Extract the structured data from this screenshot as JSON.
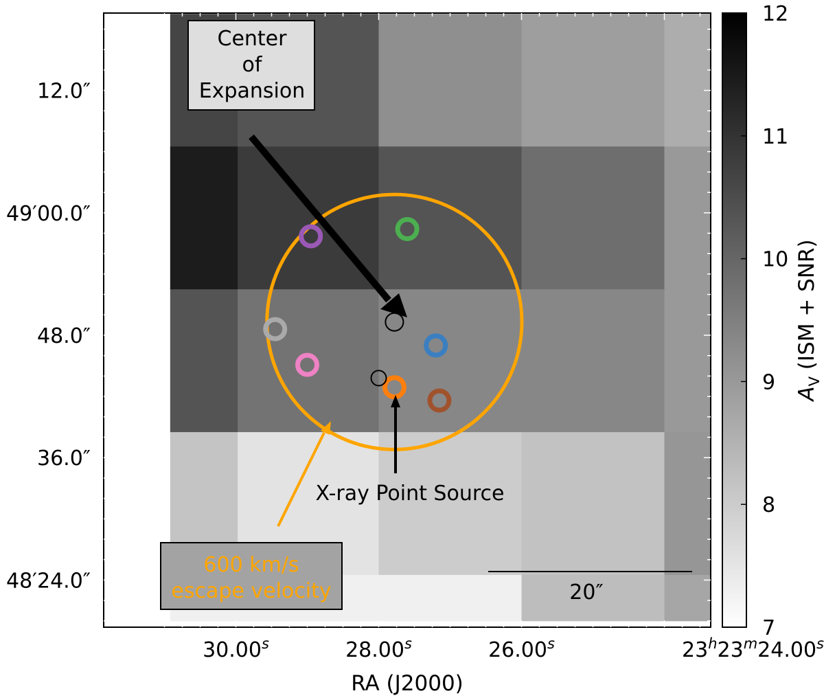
{
  "chart_data": {
    "type": "heatmap",
    "description_units": "Extinction map A_V with marked sources",
    "xlabel": "RA (J2000)",
    "x_tick_labels": [
      {
        "main": "30.00",
        "sup": "s"
      },
      {
        "main": "28.00",
        "sup": "s"
      },
      {
        "main": "26.00",
        "sup": "s"
      },
      {
        "main": "23",
        "sup": "h",
        "main2": "23",
        "sup2": "m",
        "main3": "24.00",
        "sup3": "s"
      }
    ],
    "x_tick_values_s": [
      30.0,
      28.0,
      26.0,
      24.0
    ],
    "y_tick_labels": [
      "12.0″",
      "49′00.0″",
      "48.0″",
      "36.0″",
      "48′24.0″"
    ],
    "y_tick_values_arcsec": [
      12,
      0,
      -12,
      -24,
      -36
    ],
    "colorbar": {
      "label_main": "A",
      "label_sub": "V",
      "label_rest": " (ISM + SNR)",
      "range": [
        7,
        12
      ],
      "ticks": [
        "7",
        "8",
        "9",
        "10",
        "11",
        "12"
      ],
      "tick_values": [
        7,
        8,
        9,
        10,
        11,
        12
      ],
      "colormap": "gray_r"
    },
    "grid": {
      "col_ra_s": [
        30.92,
        29.975,
        28.0,
        26.0,
        24.0,
        23.3
      ],
      "row_dec_arcsec": [
        19.5,
        6.5,
        -7.5,
        -21.5,
        -35.5,
        -40.0
      ],
      "values": [
        [
          10.65,
          10.35,
          9.2,
          8.9,
          8.6
        ],
        [
          11.45,
          10.85,
          10.35,
          9.85,
          9.0
        ],
        [
          10.35,
          9.75,
          9.35,
          9.35,
          9.0
        ],
        [
          8.15,
          7.55,
          8.0,
          8.2,
          9.05
        ],
        [
          7.3,
          7.3,
          7.3,
          8.3,
          8.75
        ]
      ]
    },
    "escape_circle": {
      "ra_s": 27.78,
      "dec_arcsec": -10.7,
      "radius_arcsec": 12.5,
      "color": "#ffa500"
    },
    "center_of_expansion": {
      "ra_s": 27.78,
      "dec_arcsec": -10.7
    },
    "xray_point_source": {
      "ra_s": 28.0,
      "dec_arcsec": -16.2
    },
    "stars": [
      {
        "ra_s": 28.95,
        "dec_arcsec": -2.3,
        "color": "#9b59b6"
      },
      {
        "ra_s": 27.6,
        "dec_arcsec": -1.6,
        "color": "#4caf50"
      },
      {
        "ra_s": 29.45,
        "dec_arcsec": -11.4,
        "color": "#aaaaaa"
      },
      {
        "ra_s": 27.2,
        "dec_arcsec": -13.0,
        "color": "#3a7fc1"
      },
      {
        "ra_s": 29.0,
        "dec_arcsec": -14.9,
        "color": "#ee82c4"
      },
      {
        "ra_s": 27.78,
        "dec_arcsec": -17.1,
        "color": "#ff7f0e"
      },
      {
        "ra_s": 27.15,
        "dec_arcsec": -18.4,
        "color": "#a0522d"
      }
    ],
    "scale_bar": {
      "length_arcsec": 20,
      "label": "20″"
    },
    "annotations": {
      "center_label": [
        "Center",
        "of",
        "Expansion"
      ],
      "xray_label": "X-ray Point Source",
      "escape_label": [
        "600 km/s",
        "escape velocity"
      ]
    },
    "colors": {
      "arrow_black": "#000000",
      "arrow_orange": "#ffa500",
      "escape_text": "#ffa500"
    }
  }
}
